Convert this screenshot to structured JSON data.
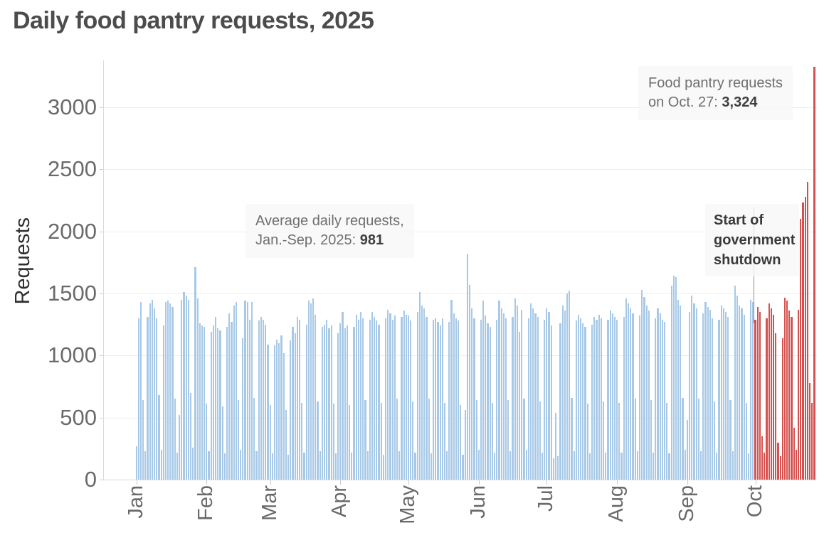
{
  "title": "Daily food pantry requests, 2025",
  "y_axis": {
    "label": "Requests",
    "ticks": [
      0,
      500,
      1000,
      1500,
      2000,
      2500,
      3000
    ]
  },
  "x_axis": {
    "months": [
      "Jan",
      "Feb",
      "Mar",
      "Apr",
      "May",
      "Jun",
      "Jul",
      "Aug",
      "Sep",
      "Oct"
    ],
    "month_day_offsets": [
      0,
      31,
      59,
      90,
      120,
      151,
      181,
      212,
      243,
      273
    ]
  },
  "annotations": {
    "average": {
      "line1": "Average daily requests,",
      "line2_label": "Jan.-Sep. 2025: ",
      "value": "981"
    },
    "oct27": {
      "line1": "Food pantry requests",
      "line2_label": "on Oct. 27: ",
      "value": "3,324"
    },
    "shutdown": {
      "text": "Start of government shutdown"
    }
  },
  "colors": {
    "bar_jan_sep": "#a7c9e7",
    "bar_october": "#d5514f",
    "grid": "#ededed",
    "axis": "#d9d9d9",
    "title_text": "#4c4c4c",
    "tick_text": "#6a6a6a",
    "annotation_text": "#6f6f6f",
    "annotation_value": "#3f3f3f",
    "annotation_bg": "rgba(247,247,247,0.76)",
    "shutdown_line": "#8f8f8f"
  },
  "chart_data": {
    "type": "bar",
    "title": "Daily food pantry requests, 2025",
    "ylabel": "Requests",
    "ylim": [
      0,
      3392
    ],
    "y_ticks": [
      0,
      500,
      1000,
      1500,
      2000,
      2500,
      3000
    ],
    "grid": true,
    "start_date": "2025-01-01",
    "end_date": "2025-10-27",
    "shutdown_start_date": "2025-10-01",
    "shutdown_start_index": 273,
    "stated_values": {
      "jan_sep_daily_average": 981,
      "oct_27_requests": 3324
    },
    "values": [
      270,
      1300,
      1430,
      640,
      230,
      1310,
      1420,
      1450,
      1380,
      1300,
      680,
      240,
      1240,
      1430,
      1440,
      1420,
      1390,
      650,
      220,
      520,
      1450,
      1510,
      1480,
      1450,
      700,
      260,
      1710,
      1460,
      1260,
      1240,
      1230,
      610,
      230,
      1190,
      1240,
      1310,
      1220,
      1200,
      590,
      210,
      1230,
      1340,
      1270,
      1400,
      1430,
      640,
      240,
      1140,
      1440,
      1430,
      1290,
      1430,
      660,
      230,
      1280,
      1310,
      1290,
      1250,
      1090,
      600,
      210,
      1080,
      1130,
      1100,
      1160,
      1020,
      560,
      200,
      1120,
      1230,
      1180,
      1310,
      1290,
      620,
      220,
      1250,
      1440,
      1420,
      1460,
      1330,
      630,
      230,
      1230,
      1250,
      1290,
      1220,
      1240,
      610,
      210,
      1180,
      1260,
      1350,
      1220,
      1240,
      600,
      220,
      1230,
      1330,
      1290,
      1350,
      1300,
      640,
      230,
      1290,
      1350,
      1310,
      1280,
      1250,
      620,
      200,
      1300,
      1370,
      1340,
      1290,
      1320,
      650,
      230,
      1310,
      1360,
      1330,
      1320,
      1280,
      630,
      220,
      1350,
      1510,
      1400,
      1380,
      1310,
      650,
      210,
      1290,
      1300,
      1270,
      1240,
      1300,
      620,
      230,
      1270,
      1450,
      1340,
      1300,
      1280,
      600,
      200,
      560,
      1820,
      1570,
      1380,
      1300,
      640,
      240,
      1290,
      1440,
      1320,
      1260,
      1230,
      620,
      220,
      1290,
      1440,
      1380,
      1340,
      1300,
      640,
      230,
      1310,
      1460,
      1400,
      1190,
      1370,
      650,
      240,
      1300,
      1420,
      1380,
      1340,
      1310,
      630,
      220,
      1290,
      1380,
      1350,
      1240,
      170,
      540,
      190,
      1260,
      1400,
      1360,
      1500,
      1520,
      660,
      230,
      1280,
      1330,
      1300,
      1260,
      1230,
      610,
      210,
      1250,
      1310,
      1290,
      1330,
      1300,
      630,
      220,
      1290,
      1360,
      1340,
      1310,
      1290,
      620,
      220,
      1310,
      1460,
      1420,
      1380,
      1340,
      650,
      230,
      1320,
      1530,
      1470,
      1400,
      1360,
      640,
      220,
      1300,
      1380,
      1340,
      1290,
      1270,
      620,
      210,
      1560,
      1640,
      1630,
      1450,
      1400,
      660,
      240,
      480,
      1350,
      1480,
      1420,
      1380,
      650,
      230,
      1340,
      1430,
      1390,
      1370,
      1300,
      630,
      220,
      1290,
      1400,
      1380,
      1350,
      1310,
      640,
      230,
      1560,
      1480,
      1400,
      1380,
      1330,
      620,
      210,
      1450,
      1430,
      1290,
      1390,
      1350,
      350,
      215,
      1300,
      1420,
      1380,
      1330,
      1180,
      300,
      190,
      1140,
      1465,
      1440,
      1360,
      1310,
      420,
      240,
      1370,
      2100,
      2230,
      2280,
      2400,
      780,
      620,
      3324
    ]
  }
}
